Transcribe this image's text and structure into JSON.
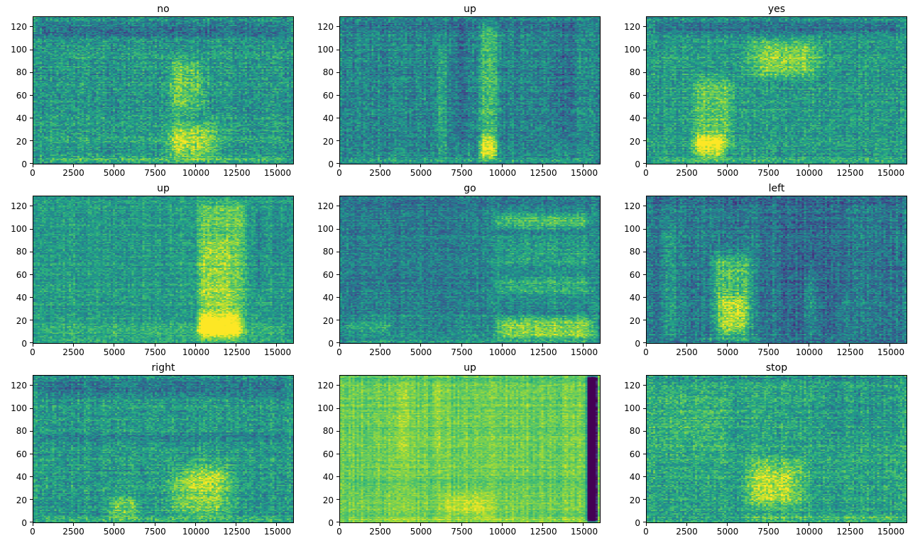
{
  "figure": {
    "background": "#ffffff",
    "grid_rows": 3,
    "grid_cols": 3
  },
  "palette": {
    "viridis_low": "#440154",
    "viridis_mid": "#21918c",
    "viridis_high": "#fde725",
    "axis_color": "#000000"
  },
  "chart_data": [
    {
      "type": "heatmap",
      "title": "no",
      "xlabel": "",
      "ylabel": "",
      "xlim": [
        0,
        16000
      ],
      "ylim": [
        0,
        129
      ],
      "xticks": [
        0,
        2500,
        5000,
        7500,
        10000,
        12500,
        15000
      ],
      "yticks": [
        0,
        20,
        40,
        60,
        80,
        100,
        120
      ],
      "colormap": "viridis",
      "grid": false,
      "base": 0.53,
      "noise": 0.16,
      "row_noise": 0.05,
      "col_noise": 0.04,
      "seed": 11,
      "features": [
        {
          "x": [
            0,
            16000
          ],
          "y": [
            106,
            129
          ],
          "level": -0.14,
          "fx": 800,
          "fy": 8
        },
        {
          "x": [
            0,
            16000
          ],
          "y": [
            0,
            7
          ],
          "level": 0.18,
          "fx": 800,
          "fy": 3
        },
        {
          "x": [
            0,
            16000
          ],
          "y": [
            16,
            26
          ],
          "level": 0.07,
          "fx": 800,
          "fy": 5
        },
        {
          "x": [
            7800,
            11800
          ],
          "y": [
            0,
            40
          ],
          "level": 0.3,
          "fx": 1200,
          "fy": 12
        },
        {
          "x": [
            8000,
            11000
          ],
          "y": [
            38,
            96
          ],
          "level": 0.2,
          "fx": 900,
          "fy": 14
        },
        {
          "x": [
            8300,
            9500
          ],
          "y": [
            0,
            100
          ],
          "level": 0.08,
          "fx": 400,
          "fy": 10
        }
      ]
    },
    {
      "type": "heatmap",
      "title": "up",
      "xlabel": "",
      "ylabel": "",
      "xlim": [
        0,
        16000
      ],
      "ylim": [
        0,
        129
      ],
      "xticks": [
        0,
        2500,
        5000,
        7500,
        10000,
        12500,
        15000
      ],
      "yticks": [
        0,
        20,
        40,
        60,
        80,
        100,
        120
      ],
      "colormap": "viridis",
      "grid": false,
      "base": 0.46,
      "noise": 0.15,
      "row_noise": 0.05,
      "col_noise": 0.05,
      "seed": 22,
      "features": [
        {
          "x": [
            8400,
            9900
          ],
          "y": [
            0,
            129
          ],
          "level": 0.22,
          "fx": 400,
          "fy": 12
        },
        {
          "x": [
            8400,
            9800
          ],
          "y": [
            0,
            28
          ],
          "level": 0.32,
          "fx": 400,
          "fy": 8
        },
        {
          "x": [
            5900,
            6700
          ],
          "y": [
            0,
            112
          ],
          "level": 0.13,
          "fx": 300,
          "fy": 14
        },
        {
          "x": [
            6900,
            8200
          ],
          "y": [
            18,
            129
          ],
          "level": -0.08,
          "fx": 300,
          "fy": 10
        },
        {
          "x": [
            12800,
            14600
          ],
          "y": [
            18,
            129
          ],
          "level": -0.08,
          "fx": 400,
          "fy": 10
        },
        {
          "x": [
            0,
            16000
          ],
          "y": [
            0,
            6
          ],
          "level": 0.16,
          "fx": 800,
          "fy": 3
        },
        {
          "x": [
            0,
            16000
          ],
          "y": [
            112,
            129
          ],
          "level": -0.06,
          "fx": 800,
          "fy": 6
        }
      ]
    },
    {
      "type": "heatmap",
      "title": "yes",
      "xlabel": "",
      "ylabel": "",
      "xlim": [
        0,
        16000
      ],
      "ylim": [
        0,
        129
      ],
      "xticks": [
        0,
        2500,
        5000,
        7500,
        10000,
        12500,
        15000
      ],
      "yticks": [
        0,
        20,
        40,
        60,
        80,
        100,
        120
      ],
      "colormap": "viridis",
      "grid": false,
      "base": 0.54,
      "noise": 0.15,
      "row_noise": 0.05,
      "col_noise": 0.04,
      "seed": 33,
      "features": [
        {
          "x": [
            0,
            16000
          ],
          "y": [
            110,
            129
          ],
          "level": -0.16,
          "fx": 800,
          "fy": 7
        },
        {
          "x": [
            5800,
            11200
          ],
          "y": [
            72,
            112
          ],
          "level": 0.26,
          "fx": 1500,
          "fy": 10
        },
        {
          "x": [
            2600,
            5600
          ],
          "y": [
            5,
            82
          ],
          "level": 0.2,
          "fx": 600,
          "fy": 14
        },
        {
          "x": [
            2600,
            5000
          ],
          "y": [
            0,
            30
          ],
          "level": 0.33,
          "fx": 600,
          "fy": 10
        },
        {
          "x": [
            0,
            16000
          ],
          "y": [
            0,
            6
          ],
          "level": 0.14,
          "fx": 800,
          "fy": 3
        }
      ]
    },
    {
      "type": "heatmap",
      "title": "up",
      "xlabel": "",
      "ylabel": "",
      "xlim": [
        0,
        16000
      ],
      "ylim": [
        0,
        129
      ],
      "xticks": [
        0,
        2500,
        5000,
        7500,
        10000,
        12500,
        15000
      ],
      "yticks": [
        0,
        20,
        40,
        60,
        80,
        100,
        120
      ],
      "colormap": "viridis",
      "grid": false,
      "base": 0.55,
      "noise": 0.13,
      "row_noise": 0.05,
      "col_noise": 0.04,
      "seed": 44,
      "features": [
        {
          "x": [
            9900,
            13300
          ],
          "y": [
            0,
            129
          ],
          "level": 0.2,
          "fx": 500,
          "fy": 12
        },
        {
          "x": [
            10100,
            12500
          ],
          "y": [
            0,
            96
          ],
          "level": 0.09,
          "fx": 500,
          "fy": 12
        },
        {
          "x": [
            9900,
            13000
          ],
          "y": [
            0,
            30
          ],
          "level": 0.26,
          "fx": 500,
          "fy": 9
        },
        {
          "x": [
            0,
            16000
          ],
          "y": [
            0,
            20
          ],
          "level": 0.1,
          "fx": 800,
          "fy": 8
        },
        {
          "x": [
            13600,
            14300
          ],
          "y": [
            40,
            129
          ],
          "level": -0.1,
          "fx": 250,
          "fy": 12
        },
        {
          "x": [
            14300,
            16000
          ],
          "y": [
            60,
            129
          ],
          "level": -0.04,
          "fx": 500,
          "fy": 12
        }
      ]
    },
    {
      "type": "heatmap",
      "title": "go",
      "xlabel": "",
      "ylabel": "",
      "xlim": [
        0,
        16000
      ],
      "ylim": [
        0,
        129
      ],
      "xticks": [
        0,
        2500,
        5000,
        7500,
        10000,
        12500,
        15000
      ],
      "yticks": [
        0,
        20,
        40,
        60,
        80,
        100,
        120
      ],
      "colormap": "viridis",
      "grid": false,
      "base": 0.48,
      "noise": 0.14,
      "row_noise": 0.05,
      "col_noise": 0.04,
      "seed": 55,
      "features": [
        {
          "x": [
            0,
            9200
          ],
          "y": [
            22,
            129
          ],
          "level": -0.06,
          "fx": 700,
          "fy": 10
        },
        {
          "x": [
            0,
            16000
          ],
          "y": [
            116,
            129
          ],
          "level": -0.05,
          "fx": 800,
          "fy": 6
        },
        {
          "x": [
            9300,
            15600
          ],
          "y": [
            98,
            116
          ],
          "level": 0.22,
          "fx": 700,
          "fy": 6
        },
        {
          "x": [
            9300,
            15800
          ],
          "y": [
            40,
            62
          ],
          "level": 0.16,
          "fx": 700,
          "fy": 7
        },
        {
          "x": [
            9300,
            15800
          ],
          "y": [
            62,
            96
          ],
          "level": 0.08,
          "fx": 700,
          "fy": 8
        },
        {
          "x": [
            9300,
            16000
          ],
          "y": [
            0,
            26
          ],
          "level": 0.34,
          "fx": 800,
          "fy": 8
        },
        {
          "x": [
            0,
            3500
          ],
          "y": [
            8,
            20
          ],
          "level": 0.15,
          "fx": 600,
          "fy": 5
        },
        {
          "x": [
            0,
            16000
          ],
          "y": [
            0,
            4
          ],
          "level": 0.1,
          "fx": 800,
          "fy": 2
        }
      ]
    },
    {
      "type": "heatmap",
      "title": "left",
      "xlabel": "",
      "ylabel": "",
      "xlim": [
        0,
        16000
      ],
      "ylim": [
        0,
        129
      ],
      "xticks": [
        0,
        2500,
        5000,
        7500,
        10000,
        12500,
        15000
      ],
      "yticks": [
        0,
        20,
        40,
        60,
        80,
        100,
        120
      ],
      "colormap": "viridis",
      "grid": false,
      "base": 0.41,
      "noise": 0.15,
      "row_noise": 0.05,
      "col_noise": 0.06,
      "seed": 66,
      "features": [
        {
          "x": [
            3800,
            6800
          ],
          "y": [
            0,
            86
          ],
          "level": 0.3,
          "fx": 700,
          "fy": 16
        },
        {
          "x": [
            4300,
            6300
          ],
          "y": [
            0,
            46
          ],
          "level": 0.18,
          "fx": 500,
          "fy": 10
        },
        {
          "x": [
            800,
            2100
          ],
          "y": [
            0,
            110
          ],
          "level": 0.1,
          "fx": 400,
          "fy": 16
        },
        {
          "x": [
            7800,
            12600
          ],
          "y": [
            0,
            129
          ],
          "level": -0.07,
          "fx": 600,
          "fy": 12
        },
        {
          "x": [
            9600,
            10600
          ],
          "y": [
            0,
            70
          ],
          "level": 0.14,
          "fx": 300,
          "fy": 14
        },
        {
          "x": [
            11800,
            12500
          ],
          "y": [
            0,
            50
          ],
          "level": 0.09,
          "fx": 250,
          "fy": 12
        },
        {
          "x": [
            3000,
            7500
          ],
          "y": [
            0,
            6
          ],
          "level": 0.15,
          "fx": 600,
          "fy": 3
        },
        {
          "x": [
            0,
            16000
          ],
          "y": [
            118,
            129
          ],
          "level": -0.05,
          "fx": 800,
          "fy": 5
        }
      ]
    },
    {
      "type": "heatmap",
      "title": "right",
      "xlabel": "",
      "ylabel": "",
      "xlim": [
        0,
        16000
      ],
      "ylim": [
        0,
        129
      ],
      "xticks": [
        0,
        2500,
        5000,
        7500,
        10000,
        12500,
        15000
      ],
      "yticks": [
        0,
        20,
        40,
        60,
        80,
        100,
        120
      ],
      "colormap": "viridis",
      "grid": false,
      "base": 0.54,
      "noise": 0.15,
      "row_noise": 0.05,
      "col_noise": 0.04,
      "seed": 77,
      "features": [
        {
          "x": [
            0,
            16000
          ],
          "y": [
            108,
            129
          ],
          "level": -0.14,
          "fx": 800,
          "fy": 8
        },
        {
          "x": [
            0,
            16000
          ],
          "y": [
            68,
            80
          ],
          "level": -0.08,
          "fx": 800,
          "fy": 5
        },
        {
          "x": [
            7800,
            12800
          ],
          "y": [
            0,
            52
          ],
          "level": 0.28,
          "fx": 1500,
          "fy": 14
        },
        {
          "x": [
            4300,
            6800
          ],
          "y": [
            0,
            26
          ],
          "level": 0.22,
          "fx": 700,
          "fy": 9
        },
        {
          "x": [
            9000,
            12500
          ],
          "y": [
            28,
            62
          ],
          "level": 0.1,
          "fx": 900,
          "fy": 10
        },
        {
          "x": [
            0,
            16000
          ],
          "y": [
            0,
            6
          ],
          "level": 0.12,
          "fx": 800,
          "fy": 3
        },
        {
          "x": [
            2400,
            2750
          ],
          "y": [
            0,
            129
          ],
          "level": -0.06,
          "fx": 150,
          "fy": 12
        }
      ]
    },
    {
      "type": "heatmap",
      "title": "up",
      "xlabel": "",
      "ylabel": "",
      "xlim": [
        0,
        16000
      ],
      "ylim": [
        0,
        129
      ],
      "xticks": [
        0,
        2500,
        5000,
        7500,
        10000,
        12500,
        15000
      ],
      "yticks": [
        0,
        20,
        40,
        60,
        80,
        100,
        120
      ],
      "colormap": "viridis",
      "grid": false,
      "base": 0.78,
      "noise": 0.08,
      "row_noise": 0.04,
      "col_noise": 0.05,
      "seed": 88,
      "features": [
        {
          "x": [
            6000,
            9800
          ],
          "y": [
            0,
            30
          ],
          "level": 0.12,
          "fx": 1000,
          "fy": 10
        },
        {
          "x": [
            0,
            16000
          ],
          "y": [
            0,
            5
          ],
          "level": 0.08,
          "fx": 800,
          "fy": 2
        },
        {
          "x": [
            0,
            16000
          ],
          "y": [
            28,
            40
          ],
          "level": -0.05,
          "fx": 800,
          "fy": 5
        },
        {
          "x": [
            3500,
            4300
          ],
          "y": [
            55,
            122
          ],
          "level": 0.06,
          "fx": 250,
          "fy": 10
        },
        {
          "x": [
            5600,
            6300
          ],
          "y": [
            55,
            129
          ],
          "level": 0.05,
          "fx": 250,
          "fy": 10
        },
        {
          "x": [
            0,
            16000
          ],
          "y": [
            122,
            129
          ],
          "level": -0.06,
          "fx": 800,
          "fy": 4
        },
        {
          "x": [
            15150,
            15850
          ],
          "y": [
            0,
            129
          ],
          "level": -0.9,
          "fx": 60,
          "fy": 2
        }
      ]
    },
    {
      "type": "heatmap",
      "title": "stop",
      "xlabel": "",
      "ylabel": "",
      "xlim": [
        0,
        16000
      ],
      "ylim": [
        0,
        129
      ],
      "xticks": [
        0,
        2500,
        5000,
        7500,
        10000,
        12500,
        15000
      ],
      "yticks": [
        0,
        20,
        40,
        60,
        80,
        100,
        120
      ],
      "colormap": "viridis",
      "grid": false,
      "base": 0.58,
      "noise": 0.15,
      "row_noise": 0.05,
      "col_noise": 0.04,
      "seed": 99,
      "features": [
        {
          "x": [
            5600,
            10300
          ],
          "y": [
            8,
            60
          ],
          "level": 0.22,
          "fx": 1300,
          "fy": 12
        },
        {
          "x": [
            6000,
            9200
          ],
          "y": [
            14,
            46
          ],
          "level": 0.1,
          "fx": 900,
          "fy": 9
        },
        {
          "x": [
            0,
            5500
          ],
          "y": [
            55,
            120
          ],
          "level": 0.06,
          "fx": 900,
          "fy": 14
        },
        {
          "x": [
            0,
            16000
          ],
          "y": [
            122,
            129
          ],
          "level": -0.1,
          "fx": 800,
          "fy": 4
        },
        {
          "x": [
            5600,
            16000
          ],
          "y": [
            0,
            8
          ],
          "level": 0.15,
          "fx": 700,
          "fy": 4
        },
        {
          "x": [
            10500,
            16000
          ],
          "y": [
            70,
            129
          ],
          "level": -0.05,
          "fx": 800,
          "fy": 12
        },
        {
          "x": [
            5350,
            5700
          ],
          "y": [
            0,
            129
          ],
          "level": -0.06,
          "fx": 150,
          "fy": 12
        }
      ]
    }
  ]
}
